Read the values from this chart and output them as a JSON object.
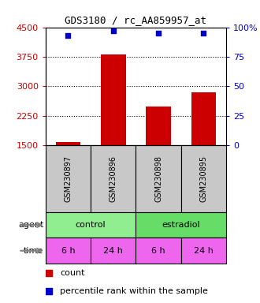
{
  "title": "GDS3180 / rc_AA859957_at",
  "samples": [
    "GSM230897",
    "GSM230896",
    "GSM230898",
    "GSM230895"
  ],
  "counts": [
    1590,
    3820,
    2480,
    2840
  ],
  "percentiles": [
    93,
    97,
    95,
    95
  ],
  "ylim_left": [
    1500,
    4500
  ],
  "ylim_right": [
    0,
    100
  ],
  "yticks_left": [
    1500,
    2250,
    3000,
    3750,
    4500
  ],
  "yticks_right": [
    0,
    25,
    50,
    75,
    100
  ],
  "time_labels": [
    "6 h",
    "24 h",
    "6 h",
    "24 h"
  ],
  "agent_box_colors": [
    "#90EE90",
    "#66DD66"
  ],
  "time_color": "#EE66EE",
  "bar_color": "#CC0000",
  "dot_color": "#0000CC",
  "background_color": "#FFFFFF",
  "left_axis_color": "#CC0000",
  "right_axis_color": "#0000CC",
  "sample_box_color": "#C8C8C8",
  "n_samples": 4
}
